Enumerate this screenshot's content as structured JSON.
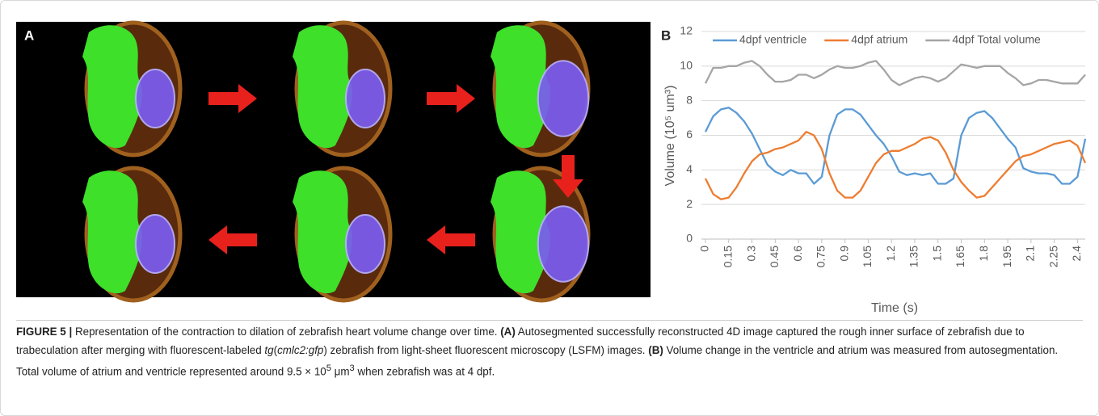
{
  "panel_a": {
    "label": "A"
  },
  "chart_data": {
    "type": "line",
    "panel_label": "B",
    "ylabel": "Volume (10⁵ um³)",
    "xlabel": "Time (s)",
    "x": [
      0,
      0.05,
      0.1,
      0.15,
      0.2,
      0.25,
      0.3,
      0.35,
      0.4,
      0.45,
      0.5,
      0.55,
      0.6,
      0.65,
      0.7,
      0.75,
      0.8,
      0.85,
      0.9,
      0.95,
      1.0,
      1.05,
      1.1,
      1.15,
      1.2,
      1.25,
      1.3,
      1.35,
      1.4,
      1.45,
      1.5,
      1.55,
      1.6,
      1.65,
      1.7,
      1.75,
      1.8,
      1.85,
      1.9,
      1.95,
      2.0,
      2.05,
      2.1,
      2.15,
      2.2,
      2.25,
      2.3,
      2.35,
      2.4,
      2.45
    ],
    "series": [
      {
        "name": "4dpf ventricle",
        "color": "#5b9bd5",
        "values": [
          6.2,
          7.1,
          7.5,
          7.6,
          7.3,
          6.8,
          6.1,
          5.2,
          4.3,
          3.9,
          3.7,
          4.0,
          3.8,
          3.8,
          3.2,
          3.6,
          6.0,
          7.2,
          7.5,
          7.5,
          7.2,
          6.6,
          6.0,
          5.5,
          4.8,
          3.9,
          3.7,
          3.8,
          3.7,
          3.8,
          3.2,
          3.2,
          3.5,
          6.0,
          7.0,
          7.3,
          7.4,
          7.0,
          6.4,
          5.8,
          5.3,
          4.1,
          3.9,
          3.8,
          3.8,
          3.7,
          3.2,
          3.2,
          3.6,
          5.8
        ]
      },
      {
        "name": "4dpf atrium",
        "color": "#ed7d31",
        "values": [
          3.5,
          2.6,
          2.3,
          2.4,
          3.0,
          3.8,
          4.5,
          4.9,
          5.0,
          5.2,
          5.3,
          5.5,
          5.7,
          6.2,
          6.0,
          5.2,
          3.8,
          2.8,
          2.4,
          2.4,
          2.8,
          3.6,
          4.4,
          4.9,
          5.1,
          5.1,
          5.3,
          5.5,
          5.8,
          5.9,
          5.7,
          5.0,
          4.0,
          3.3,
          2.8,
          2.4,
          2.5,
          3.0,
          3.5,
          4.0,
          4.5,
          4.8,
          4.9,
          5.1,
          5.3,
          5.5,
          5.6,
          5.7,
          5.4,
          4.4
        ]
      },
      {
        "name": "4dpf Total volume",
        "color": "#a5a5a5",
        "values": [
          9.0,
          9.9,
          9.9,
          10.0,
          10.0,
          10.2,
          10.3,
          10.0,
          9.5,
          9.1,
          9.1,
          9.2,
          9.5,
          9.5,
          9.3,
          9.5,
          9.8,
          10.0,
          9.9,
          9.9,
          10.0,
          10.2,
          10.3,
          9.8,
          9.2,
          8.9,
          9.1,
          9.3,
          9.4,
          9.3,
          9.1,
          9.3,
          9.7,
          10.1,
          10.0,
          9.9,
          10.0,
          10.0,
          10.0,
          9.6,
          9.3,
          8.9,
          9.0,
          9.2,
          9.2,
          9.1,
          9.0,
          9.0,
          9.0,
          9.5
        ]
      }
    ],
    "xlim": [
      0,
      2.45
    ],
    "xticks": [
      0,
      0.15,
      0.3,
      0.45,
      0.6,
      0.75,
      0.9,
      1.05,
      1.2,
      1.35,
      1.5,
      1.65,
      1.8,
      1.95,
      2.1,
      2.25,
      2.4
    ],
    "ylim": [
      0,
      12
    ],
    "yticks": [
      0,
      2,
      4,
      6,
      8,
      10,
      12
    ],
    "grid": true,
    "legend": "top"
  },
  "caption": {
    "segments": [
      "FIGURE 5 |",
      " Representation of the contraction to dilation of zebrafish heart volume change over time. ",
      "(A)",
      " Autosegmented successfully reconstructed 4D image captured the rough inner surface of zebrafish due to trabeculation after merging with fluorescent-labeled ",
      "tg",
      "(",
      "cmlc2:gfp",
      ") zebrafish from light-sheet fluorescent microscopy (LSFM) images. ",
      "(B)",
      " Volume change in the ventricle and atrium was measured from autosegmentation. Total volume of atrium and ventricle represented around 9.5 × 10",
      "5",
      " μm",
      "3",
      " when zebrafish was at 4 dpf."
    ]
  }
}
